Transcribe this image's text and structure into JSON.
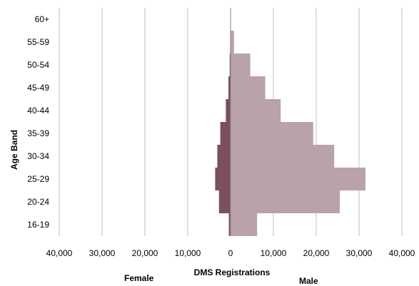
{
  "chart_data": {
    "type": "bar",
    "orientation": "horizontal",
    "subtype": "population-pyramid",
    "title": "",
    "xlabel": "DMS Registrations",
    "ylabel": "Age Band",
    "categories": [
      "16-19",
      "20-24",
      "25-29",
      "30-34",
      "35-39",
      "40-44",
      "45-49",
      "50-54",
      "55-59",
      "60+"
    ],
    "series": [
      {
        "name": "Female",
        "side": "left",
        "color": "#7a4f60",
        "values": [
          400,
          2700,
          3600,
          3100,
          2400,
          1100,
          500,
          200,
          100,
          0
        ]
      },
      {
        "name": "Male",
        "side": "right",
        "color": "#b9a2a8",
        "values": [
          6200,
          25500,
          31500,
          24200,
          19300,
          11700,
          8100,
          4600,
          800,
          100
        ]
      }
    ],
    "xlim": [
      -40000,
      40000
    ],
    "x_ticks": [
      "40,000",
      "30,000",
      "20,000",
      "10,000",
      "0",
      "10,000",
      "20,000",
      "30,000",
      "40,000"
    ],
    "grid": "vertical",
    "grid_color": "#bfbfbf"
  }
}
